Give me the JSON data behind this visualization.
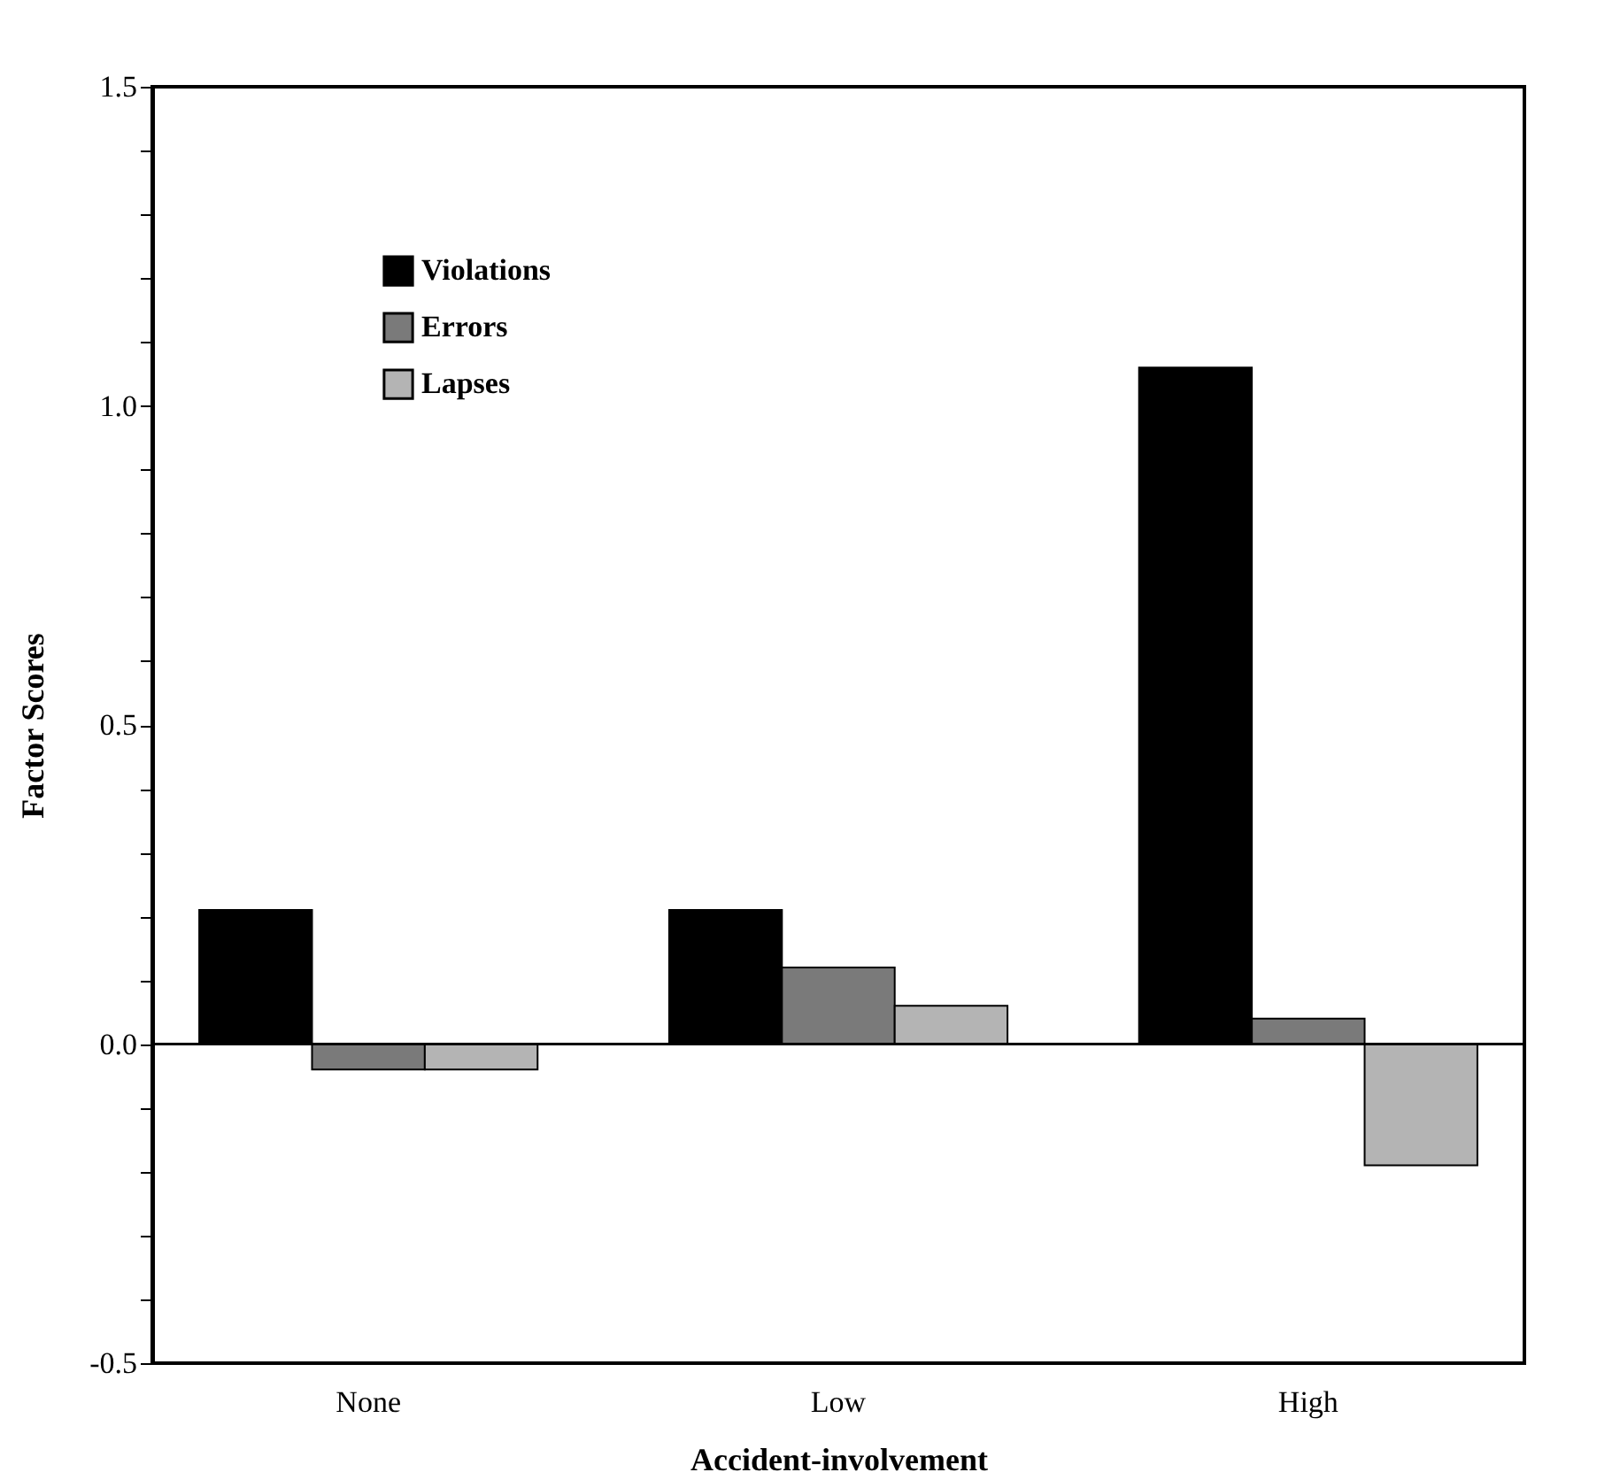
{
  "chart_data": {
    "type": "bar",
    "xlabel": "Accident-involvement",
    "ylabel": "Factor  Scores",
    "categories": [
      "None",
      "Low",
      "High"
    ],
    "series": [
      {
        "name": "Violations",
        "color": "#000000",
        "values": [
          0.21,
          0.21,
          1.06
        ]
      },
      {
        "name": "Errors",
        "color": "#7a7a7a",
        "values": [
          -0.04,
          0.12,
          0.04
        ]
      },
      {
        "name": "Lapses",
        "color": "#b4b4b4",
        "values": [
          -0.04,
          0.06,
          -0.19
        ]
      }
    ],
    "ylim": [
      -0.5,
      1.5
    ],
    "yticks": [
      {
        "value": -0.5,
        "label": "-0.5"
      },
      {
        "value": -0.4,
        "label": null
      },
      {
        "value": -0.3,
        "label": null
      },
      {
        "value": -0.2,
        "label": null
      },
      {
        "value": -0.1,
        "label": null
      },
      {
        "value": 0,
        "label": "0.0"
      },
      {
        "value": 0.1,
        "label": null
      },
      {
        "value": 0.2,
        "label": null
      },
      {
        "value": 0.3,
        "label": null
      },
      {
        "value": 0.4,
        "label": null
      },
      {
        "value": 0.5,
        "label": "0.5"
      },
      {
        "value": 0.6,
        "label": null
      },
      {
        "value": 0.7,
        "label": null
      },
      {
        "value": 0.8,
        "label": null
      },
      {
        "value": 0.9,
        "label": null
      },
      {
        "value": 1,
        "label": "1.0"
      },
      {
        "value": 1.1,
        "label": null
      },
      {
        "value": 1.2,
        "label": null
      },
      {
        "value": 1.3,
        "label": null
      },
      {
        "value": 1.4,
        "label": null
      },
      {
        "value": 1.5,
        "label": "1.5"
      }
    ],
    "ref_lines": [
      {
        "axis": "y",
        "value": 0,
        "color": "#000000"
      }
    ],
    "legend": "top left"
  }
}
